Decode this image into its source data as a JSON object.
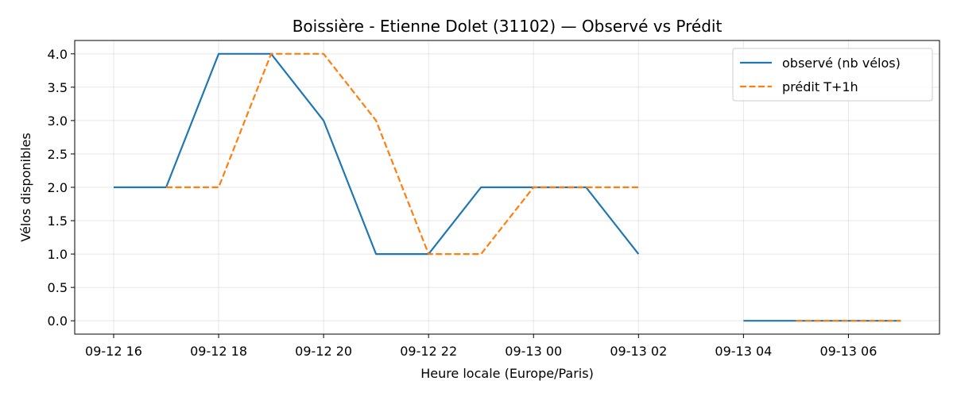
{
  "chart_data": {
    "type": "line",
    "title": "Boissière - Etienne Dolet (31102) — Observé vs Prédit",
    "xlabel": "Heure locale (Europe/Paris)",
    "ylabel": "Vélos disponibles",
    "x": [
      "09-12 16:00",
      "09-12 17:00",
      "09-12 18:00",
      "09-12 19:00",
      "09-12 20:00",
      "09-12 21:00",
      "09-12 22:00",
      "09-12 23:00",
      "09-13 00:00",
      "09-13 01:00",
      "09-13 02:00",
      "09-13 03:00",
      "09-13 04:00",
      "09-13 05:00",
      "09-13 06:00",
      "09-13 07:00"
    ],
    "xtick_labels": [
      "09-12 16",
      "09-12 18",
      "09-12 20",
      "09-12 22",
      "09-13 00",
      "09-13 02",
      "09-13 04",
      "09-13 06"
    ],
    "yticks": [
      "0.0",
      "0.5",
      "1.0",
      "1.5",
      "2.0",
      "2.5",
      "3.0",
      "3.5",
      "4.0"
    ],
    "ylim": [
      -0.2,
      4.2
    ],
    "grid": true,
    "legend_position": "top-right",
    "series": [
      {
        "name": "observé (nb vélos)",
        "color": "#1f77b4",
        "style": "solid",
        "values": [
          2,
          2,
          4,
          4,
          3,
          1,
          1,
          2,
          2,
          2,
          1,
          null,
          0,
          0,
          0,
          0
        ]
      },
      {
        "name": "prédit T+1h",
        "color": "#ff7f0e",
        "style": "dashed",
        "values": [
          null,
          2,
          2,
          4,
          4,
          3,
          1,
          1,
          2,
          2,
          2,
          null,
          null,
          0,
          0,
          0
        ]
      }
    ]
  }
}
